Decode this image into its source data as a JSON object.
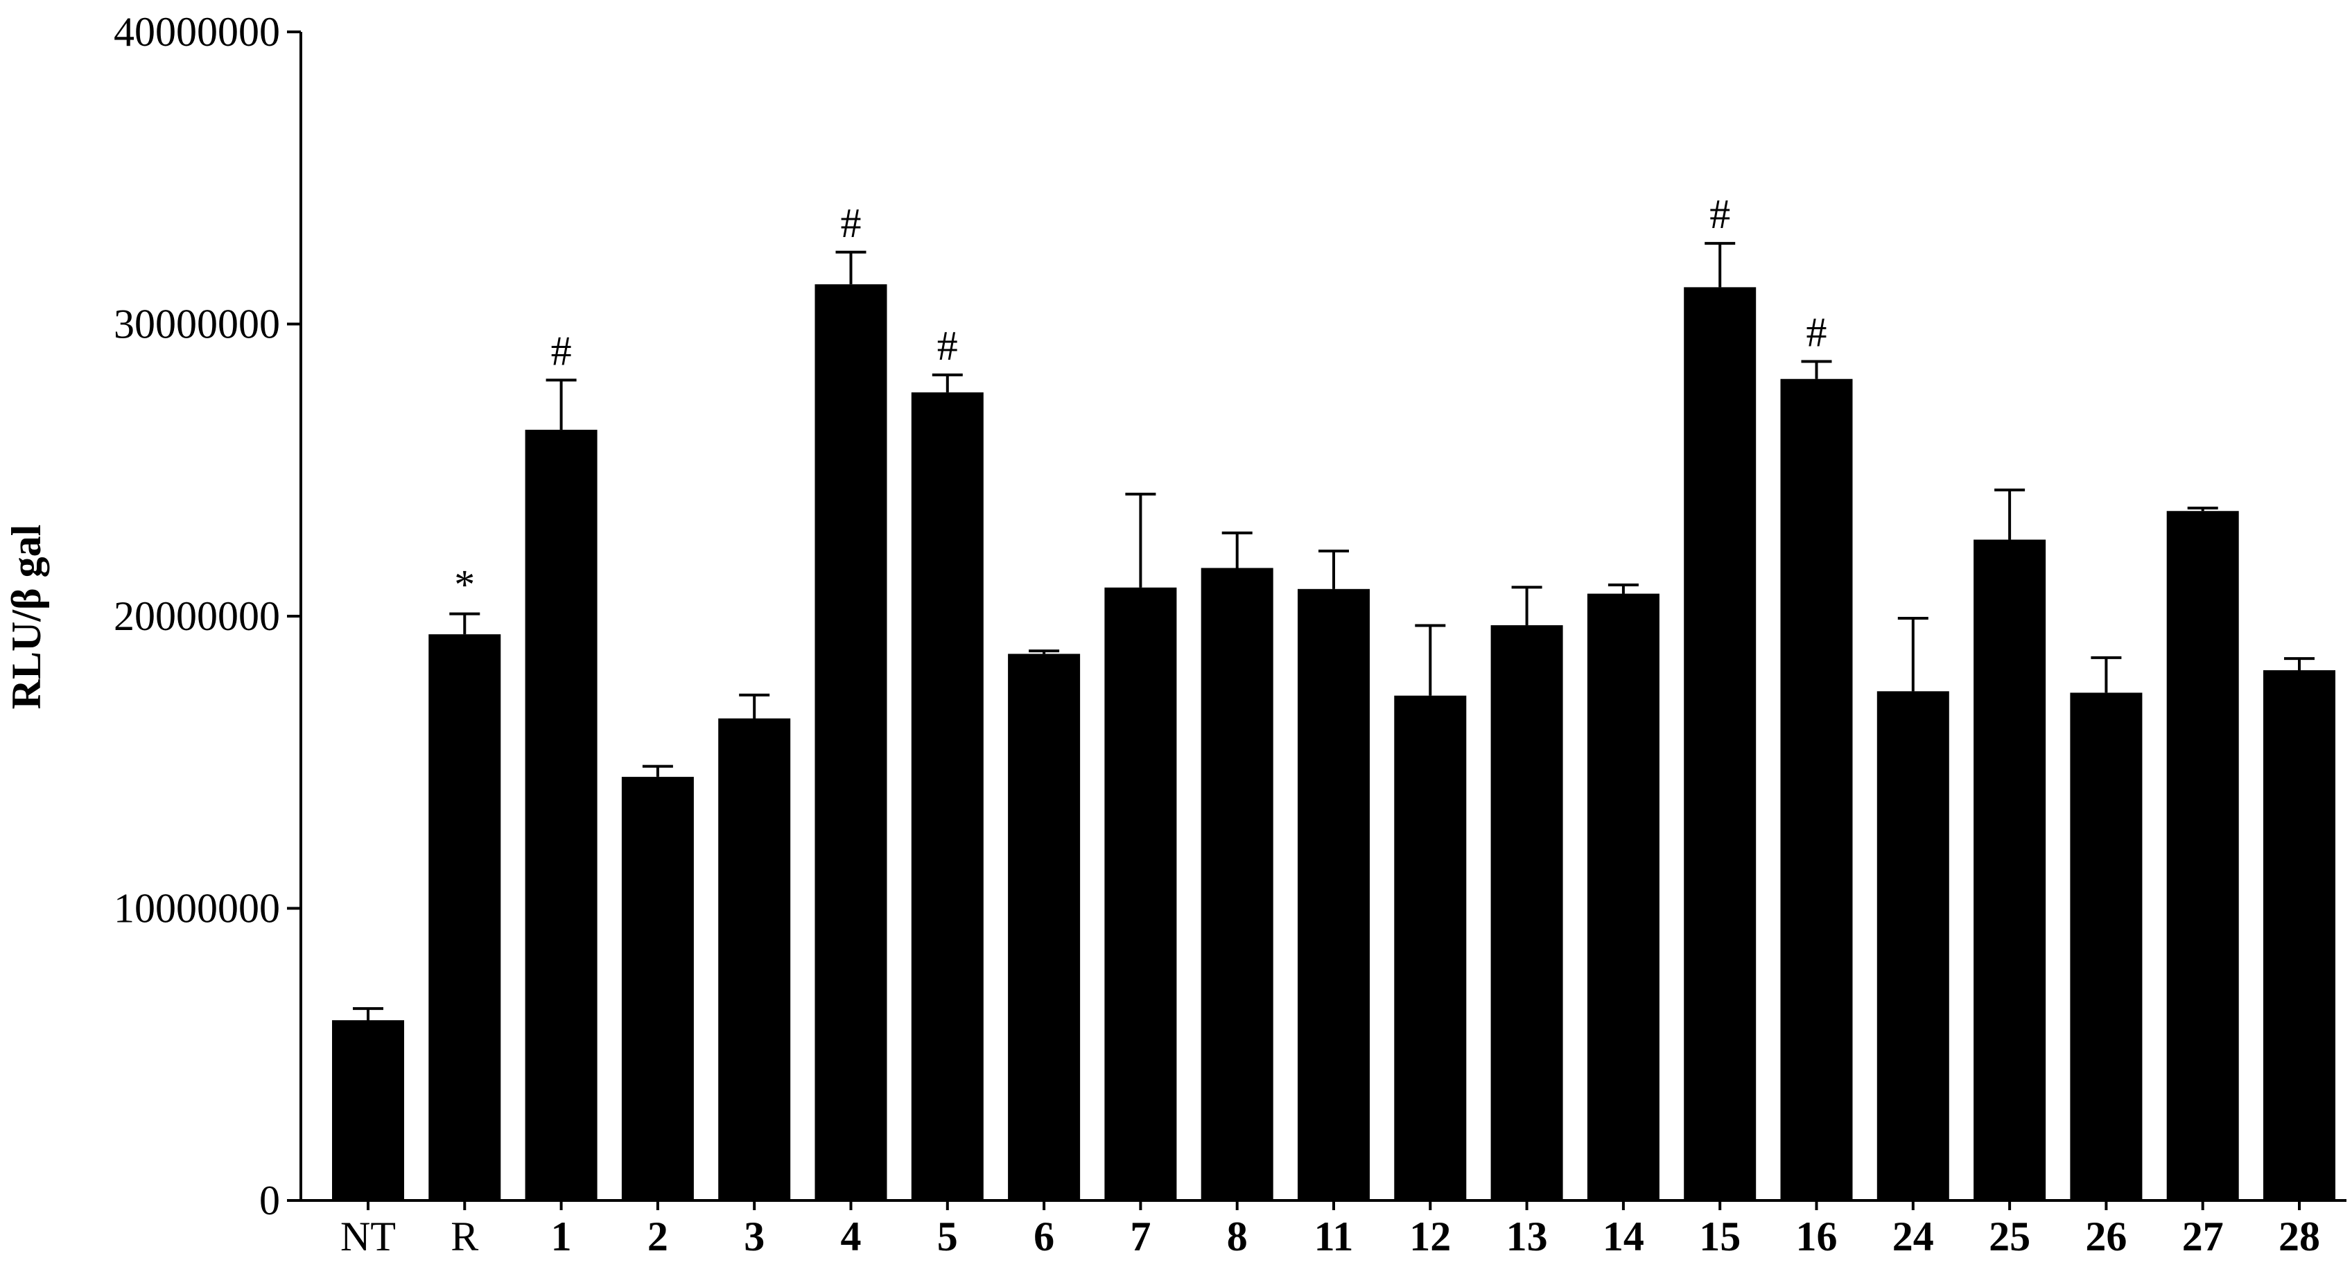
{
  "chart_data": {
    "type": "bar",
    "ylabel": "RLU/β gal",
    "categories": [
      "NT",
      "R",
      "1",
      "2",
      "3",
      "4",
      "5",
      "6",
      "7",
      "8",
      "11",
      "12",
      "13",
      "14",
      "15",
      "16",
      "24",
      "25",
      "26",
      "27",
      "28"
    ],
    "series": [
      {
        "name": null,
        "color": "#000000",
        "values": [
          6170000,
          19380000,
          26380000,
          14500000,
          16500000,
          31360000,
          27660000,
          18710000,
          20980000,
          21650000,
          20930000,
          17280000,
          19690000,
          20770000,
          31260000,
          28120000,
          17430000,
          22620000,
          17380000,
          23600000,
          18150000
        ],
        "errors": [
          400000,
          700000,
          1700000,
          360000,
          800000,
          1100000,
          600000,
          100000,
          3200000,
          1200000,
          1300000,
          2400000,
          1300000,
          300000,
          1500000,
          600000,
          2500000,
          1700000,
          1200000,
          100000,
          400000
        ]
      }
    ],
    "annotations": [
      null,
      "*",
      "#",
      null,
      null,
      "#",
      "#",
      null,
      null,
      null,
      null,
      null,
      null,
      null,
      "#",
      "#",
      null,
      null,
      null,
      null,
      null
    ],
    "ylim": [
      0,
      40000000
    ],
    "yticks": [
      0,
      10000000,
      20000000,
      30000000,
      40000000
    ],
    "grid": false
  }
}
